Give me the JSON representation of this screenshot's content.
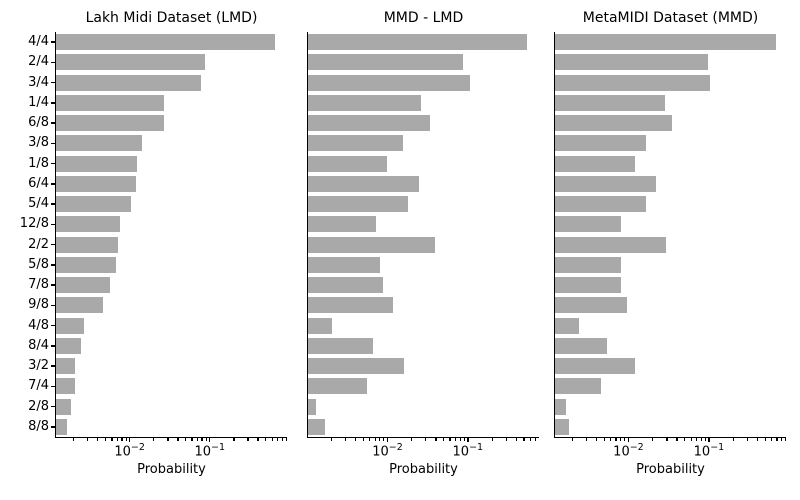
{
  "figure": {
    "background": "#ffffff",
    "bar_color": "#a9a9a9",
    "axis_color": "#000000",
    "text_color": "#000000"
  },
  "categories": [
    "4/4",
    "2/4",
    "3/4",
    "1/4",
    "6/8",
    "3/8",
    "1/8",
    "6/4",
    "5/4",
    "12/8",
    "2/2",
    "5/8",
    "7/8",
    "9/8",
    "4/8",
    "8/4",
    "3/2",
    "7/4",
    "2/8",
    "8/8"
  ],
  "x_ticks": [
    {
      "value": 0.01,
      "base": "10",
      "exp": "−2"
    },
    {
      "value": 0.1,
      "base": "10",
      "exp": "−1"
    }
  ],
  "chart_data": [
    {
      "type": "bar",
      "orientation": "horizontal",
      "xscale": "log",
      "title": "Lakh Midi Dataset (LMD)",
      "xlabel": "Probability",
      "xlim": [
        0.00122,
        0.935
      ],
      "grid": false,
      "show_y_tick_labels": true,
      "categories": [
        "4/4",
        "2/4",
        "3/4",
        "1/4",
        "6/8",
        "3/8",
        "1/8",
        "6/4",
        "5/4",
        "12/8",
        "2/2",
        "5/8",
        "7/8",
        "9/8",
        "4/8",
        "8/4",
        "3/2",
        "7/4",
        "2/8",
        "8/8"
      ],
      "values": [
        0.67,
        0.088,
        0.08,
        0.027,
        0.0272,
        0.0145,
        0.0127,
        0.012,
        0.0104,
        0.0077,
        0.0072,
        0.0068,
        0.0057,
        0.0047,
        0.00275,
        0.0025,
        0.0021,
        0.0021,
        0.0019,
        0.00166
      ]
    },
    {
      "type": "bar",
      "orientation": "horizontal",
      "xscale": "log",
      "title": "MMD - LMD",
      "xlabel": "Probability",
      "xlim": [
        0.00104,
        0.78
      ],
      "grid": false,
      "show_y_tick_labels": false,
      "categories": [
        "4/4",
        "2/4",
        "3/4",
        "1/4",
        "6/8",
        "3/8",
        "1/8",
        "6/4",
        "5/4",
        "12/8",
        "2/2",
        "5/8",
        "7/8",
        "9/8",
        "4/8",
        "8/4",
        "3/2",
        "7/4",
        "2/8",
        "8/8"
      ],
      "values": [
        0.546,
        0.089,
        0.107,
        0.0266,
        0.0348,
        0.0158,
        0.0099,
        0.0249,
        0.0183,
        0.0074,
        0.0398,
        0.0082,
        0.009,
        0.0119,
        0.00204,
        0.00668,
        0.0163,
        0.00562,
        0.00132,
        0.00171
      ]
    },
    {
      "type": "bar",
      "orientation": "horizontal",
      "xscale": "log",
      "title": "MetaMIDI Dataset (MMD)",
      "xlabel": "Probability",
      "xlim": [
        0.00124,
        0.92
      ],
      "grid": false,
      "show_y_tick_labels": false,
      "categories": [
        "4/4",
        "2/4",
        "3/4",
        "1/4",
        "6/8",
        "3/8",
        "1/8",
        "6/4",
        "5/4",
        "12/8",
        "2/2",
        "5/8",
        "7/8",
        "9/8",
        "4/8",
        "8/4",
        "3/2",
        "7/4",
        "2/8",
        "8/8"
      ],
      "values": [
        0.688,
        0.099,
        0.105,
        0.0288,
        0.0355,
        0.0168,
        0.0121,
        0.0222,
        0.0167,
        0.0081,
        0.0296,
        0.0083,
        0.0083,
        0.0097,
        0.00244,
        0.00546,
        0.0122,
        0.00456,
        0.00168,
        0.00183
      ]
    }
  ]
}
